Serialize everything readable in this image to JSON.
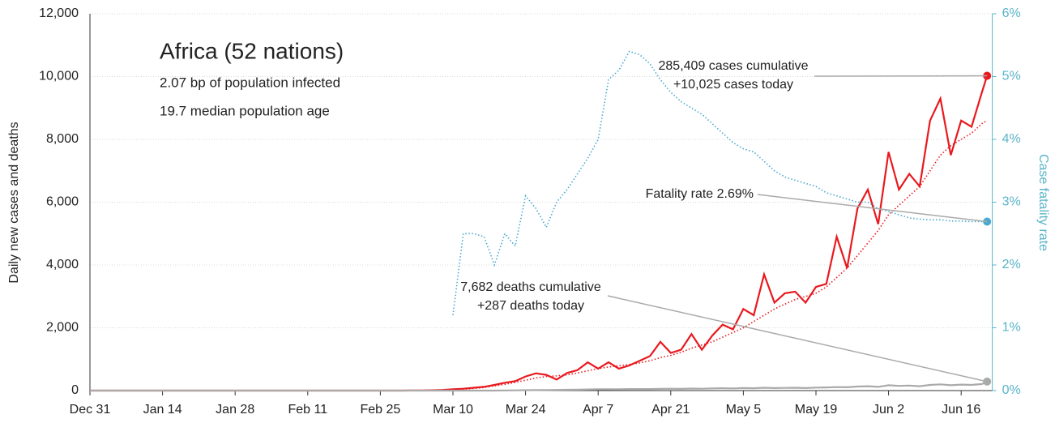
{
  "chart_data": {
    "type": "line",
    "title": "Africa (52 nations)",
    "subtitle": [
      "2.07 bp of population infected",
      "19.7 median population age"
    ],
    "ylabel": "Daily new cases and deaths",
    "y2label": "Case fatality rate",
    "annotations": [
      {
        "lines": [
          "285,409 cases cumulative",
          "+10,025 cases today"
        ]
      },
      {
        "lines": [
          "Fatality rate 2.69%"
        ]
      },
      {
        "lines": [
          "7,682 deaths cumulative",
          "+287 deaths today"
        ]
      }
    ],
    "x": [
      0,
      14,
      28,
      42,
      56,
      60,
      62,
      64,
      66,
      68,
      70,
      72,
      74,
      76,
      78,
      80,
      82,
      84,
      86,
      88,
      90,
      92,
      94,
      96,
      98,
      100,
      102,
      104,
      106,
      108,
      110,
      112,
      114,
      116,
      118,
      120,
      122,
      124,
      126,
      128,
      130,
      132,
      134,
      136,
      138,
      140,
      142,
      144,
      146,
      148,
      150,
      152,
      154,
      156,
      158,
      160,
      162,
      164,
      166,
      168,
      170,
      172,
      173
    ],
    "xlim": [
      0,
      174
    ],
    "xticks": [
      {
        "value": 0,
        "label": "Dec 31"
      },
      {
        "value": 14,
        "label": "Jan 14"
      },
      {
        "value": 28,
        "label": "Jan 28"
      },
      {
        "value": 42,
        "label": "Feb 11"
      },
      {
        "value": 56,
        "label": "Feb 25"
      },
      {
        "value": 70,
        "label": "Mar 10"
      },
      {
        "value": 84,
        "label": "Mar 24"
      },
      {
        "value": 98,
        "label": "Apr 7"
      },
      {
        "value": 112,
        "label": "Apr 21"
      },
      {
        "value": 126,
        "label": "May 5"
      },
      {
        "value": 140,
        "label": "May 19"
      },
      {
        "value": 154,
        "label": "Jun 2"
      },
      {
        "value": 168,
        "label": "Jun 16"
      }
    ],
    "ylim": [
      0,
      12000
    ],
    "yticks": [
      0,
      {
        "value": 2000,
        "label": "2,000"
      },
      {
        "value": 4000,
        "label": "4,000"
      },
      {
        "value": 6000,
        "label": "6,000"
      },
      {
        "value": 8000,
        "label": "8,000"
      },
      {
        "value": 10000,
        "label": "10,000"
      },
      {
        "value": 12000,
        "label": "12,000"
      }
    ],
    "y2lim": [
      0,
      6
    ],
    "y2ticks": [
      {
        "value": 0,
        "label": "0%"
      },
      {
        "value": 1,
        "label": "1%"
      },
      {
        "value": 2,
        "label": "2%"
      },
      {
        "value": 3,
        "label": "3%"
      },
      {
        "value": 4,
        "label": "4%"
      },
      {
        "value": 5,
        "label": "5%"
      },
      {
        "value": 6,
        "label": "6%"
      }
    ],
    "grid": true,
    "series": [
      {
        "color": "#e8191e",
        "style": "solid",
        "endpoint": true,
        "values": [
          0,
          0,
          0,
          0,
          0,
          0,
          2,
          5,
          10,
          20,
          40,
          60,
          90,
          120,
          180,
          250,
          300,
          450,
          550,
          500,
          350,
          560,
          650,
          900,
          700,
          900,
          700,
          800,
          950,
          1100,
          1550,
          1200,
          1300,
          1800,
          1300,
          1750,
          2100,
          1950,
          2600,
          2400,
          3700,
          2800,
          3100,
          3150,
          2800,
          3300,
          3400,
          4900,
          3900,
          5800,
          6400,
          5300,
          7600,
          6400,
          6900,
          6500,
          8600,
          9300,
          7500,
          8600,
          8400,
          9500,
          10025
        ]
      },
      {
        "color": "#e8191e",
        "style": "dotted",
        "endpoint": false,
        "values": [
          0,
          0,
          0,
          0,
          0,
          0,
          0,
          2,
          5,
          12,
          20,
          40,
          70,
          100,
          150,
          200,
          260,
          330,
          400,
          450,
          470,
          500,
          560,
          630,
          700,
          750,
          790,
          830,
          880,
          950,
          1050,
          1120,
          1220,
          1350,
          1450,
          1550,
          1700,
          1850,
          2000,
          2200,
          2400,
          2600,
          2750,
          2900,
          3000,
          3100,
          3300,
          3600,
          3900,
          4300,
          4700,
          5100,
          5600,
          5900,
          6200,
          6500,
          7000,
          7500,
          7800,
          8000,
          8200,
          8500,
          8600
        ]
      },
      {
        "color": "#aaaaaa",
        "style": "solid",
        "endpoint": true,
        "values": [
          0,
          0,
          0,
          0,
          0,
          0,
          0,
          0,
          0,
          0,
          0,
          0,
          0,
          0,
          0,
          5,
          8,
          12,
          15,
          18,
          20,
          25,
          28,
          35,
          40,
          40,
          45,
          48,
          50,
          50,
          55,
          60,
          55,
          65,
          60,
          70,
          75,
          70,
          80,
          75,
          90,
          80,
          85,
          90,
          80,
          95,
          100,
          110,
          105,
          130,
          140,
          120,
          170,
          150,
          160,
          140,
          180,
          200,
          170,
          190,
          180,
          210,
          287
        ]
      },
      {
        "color": "#4aa9d0",
        "style": "dotted",
        "endpoint": true,
        "axis": "y2",
        "values": [
          null,
          null,
          null,
          null,
          null,
          null,
          null,
          null,
          null,
          null,
          1.2,
          2.5,
          2.5,
          2.45,
          2.0,
          2.5,
          2.3,
          3.1,
          2.9,
          2.6,
          3.0,
          3.2,
          3.45,
          3.7,
          4.0,
          4.95,
          5.1,
          5.4,
          5.35,
          5.2,
          4.95,
          4.75,
          4.6,
          4.5,
          4.4,
          4.25,
          4.1,
          3.95,
          3.85,
          3.8,
          3.65,
          3.5,
          3.4,
          3.35,
          3.3,
          3.25,
          3.15,
          3.1,
          3.05,
          3.0,
          3.0,
          2.9,
          2.85,
          2.8,
          2.75,
          2.73,
          2.72,
          2.72,
          2.7,
          2.7,
          2.69,
          2.69,
          2.69
        ]
      }
    ]
  }
}
